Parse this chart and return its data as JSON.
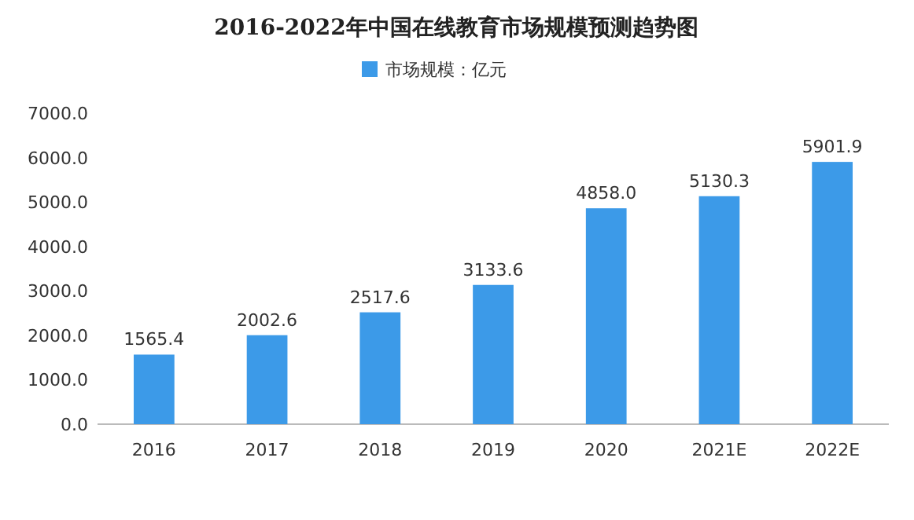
{
  "chart_data": {
    "type": "bar",
    "title": "2016-2022年中国在线教育市场规模预测趋势图",
    "categories": [
      "2016",
      "2017",
      "2018",
      "2019",
      "2020",
      "2021E",
      "2022E"
    ],
    "series": [
      {
        "name": "市场规模：亿元",
        "color": "#3c9ae8",
        "values": [
          1565.4,
          2002.6,
          2517.6,
          3133.6,
          4858.0,
          5130.3,
          5901.9
        ]
      }
    ],
    "value_labels": [
      "1565.4",
      "2002.6",
      "2517.6",
      "3133.6",
      "4858.0",
      "5130.3",
      "5901.9"
    ],
    "ylim": [
      0,
      7000
    ],
    "yticks": [
      {
        "value": 0,
        "label": "0.0"
      },
      {
        "value": 1000,
        "label": "1000.0"
      },
      {
        "value": 2000,
        "label": "2000.0"
      },
      {
        "value": 3000,
        "label": "3000.0"
      },
      {
        "value": 4000,
        "label": "4000.0"
      },
      {
        "value": 5000,
        "label": "5000.0"
      },
      {
        "value": 6000,
        "label": "6000.0"
      },
      {
        "value": 7000,
        "label": "7000.0"
      }
    ],
    "legend": "top",
    "grid": false
  }
}
